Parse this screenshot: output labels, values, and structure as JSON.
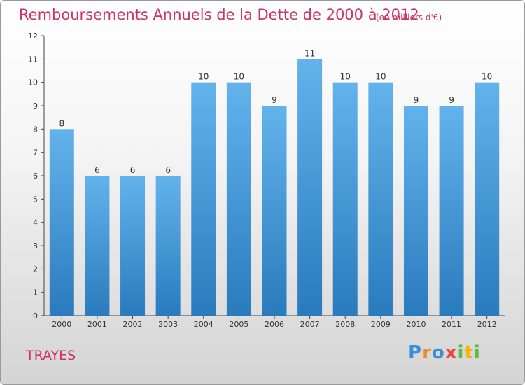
{
  "header": {
    "title": "Remboursements Annuels de la Dette de 2000 à 2012",
    "unit": "(en milliers d'€)"
  },
  "footer": {
    "place": "TRAYES",
    "logo_text": "Proxiti"
  },
  "colors": {
    "title": "#cc3366",
    "bar_top": "#62b3ec",
    "bar_bottom": "#2a7bbd",
    "axis": "#333333"
  },
  "chart_data": {
    "type": "bar",
    "title": "Remboursements Annuels de la Dette de 2000 à 2012",
    "subtitle": "(en milliers d'€)",
    "xlabel": "",
    "ylabel": "",
    "categories": [
      "2000",
      "2001",
      "2002",
      "2003",
      "2004",
      "2005",
      "2006",
      "2007",
      "2008",
      "2009",
      "2010",
      "2011",
      "2012"
    ],
    "values": [
      8,
      6,
      6,
      6,
      10,
      10,
      9,
      11,
      10,
      10,
      9,
      9,
      10
    ],
    "data_labels": [
      "8",
      "6",
      "6",
      "6",
      "10",
      "10",
      "9",
      "11",
      "10",
      "10",
      "9",
      "9",
      "10"
    ],
    "ylim": [
      0,
      12
    ],
    "yticks": [
      0,
      1,
      2,
      3,
      4,
      5,
      6,
      7,
      8,
      9,
      10,
      11,
      12
    ],
    "grid": false,
    "legend": "none"
  }
}
